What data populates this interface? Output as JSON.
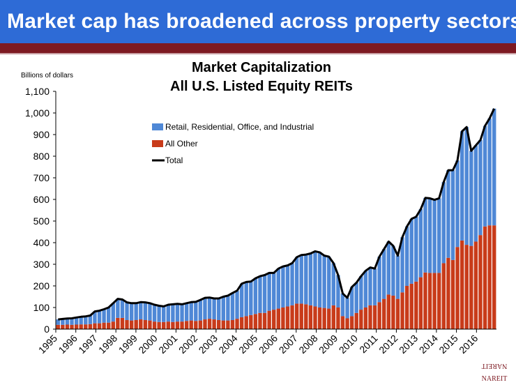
{
  "slide": {
    "title": "Market cap has broadened across property sectors",
    "colors": {
      "banner": "#2e6bd6",
      "strip": "#7d1a22"
    }
  },
  "logo": {
    "text": "NAREIT",
    "color": "#7d1a22"
  },
  "chart_data": {
    "type": "bar",
    "stacked": true,
    "title_line1": "Market Capitalization",
    "title_line2": "All U.S. Listed Equity REITs",
    "ylabel": "Billions of dollars",
    "ylim": [
      0,
      1100
    ],
    "yticks": [
      0,
      100,
      200,
      300,
      400,
      500,
      600,
      700,
      800,
      900,
      1000,
      1100
    ],
    "ytick_labels": [
      "0",
      "100",
      "200",
      "300",
      "400",
      "500",
      "600",
      "700",
      "800",
      "900",
      "1,000",
      "1,100"
    ],
    "x_start_year": 1995,
    "x_tick_labels": [
      "1995",
      "1996",
      "1997",
      "1998",
      "1999",
      "2000",
      "2001",
      "2002",
      "2003",
      "2004",
      "2005",
      "2006",
      "2007",
      "2008",
      "2009",
      "2010",
      "2011",
      "2012",
      "2013",
      "2014",
      "2015",
      "2016"
    ],
    "grid": false,
    "legend_position": "top-left",
    "series": [
      {
        "name": "Retail, Residential, Office, and Industrial",
        "color": "#4f88d6",
        "values": [
          25,
          27,
          28,
          30,
          33,
          35,
          37,
          40,
          55,
          58,
          62,
          70,
          85,
          88,
          85,
          82,
          80,
          78,
          80,
          82,
          80,
          78,
          75,
          72,
          78,
          82,
          82,
          80,
          82,
          85,
          88,
          95,
          100,
          98,
          97,
          100,
          110,
          115,
          125,
          130,
          155,
          158,
          155,
          165,
          170,
          175,
          175,
          170,
          185,
          190,
          190,
          195,
          215,
          225,
          230,
          240,
          255,
          255,
          242,
          240,
          195,
          150,
          105,
          95,
          135,
          140,
          155,
          170,
          175,
          170,
          210,
          230,
          245,
          230,
          200,
          255,
          275,
          300,
          300,
          315,
          345,
          345,
          338,
          345,
          375,
          405,
          415,
          400,
          505,
          545,
          440,
          445,
          440,
          465,
          495,
          540
        ],
        "stacks_below": true
      },
      {
        "name": "All Other",
        "color": "#c83b1a",
        "values": [
          20,
          20,
          21,
          20,
          21,
          22,
          22,
          23,
          27,
          27,
          30,
          30,
          35,
          52,
          52,
          42,
          40,
          42,
          45,
          42,
          40,
          35,
          33,
          33,
          35,
          33,
          35,
          35,
          38,
          40,
          38,
          40,
          45,
          48,
          45,
          42,
          40,
          40,
          42,
          48,
          55,
          60,
          65,
          70,
          75,
          75,
          85,
          90,
          95,
          100,
          105,
          110,
          118,
          118,
          115,
          110,
          105,
          100,
          98,
          95,
          110,
          100,
          60,
          50,
          60,
          75,
          90,
          100,
          110,
          110,
          125,
          140,
          160,
          155,
          140,
          170,
          200,
          210,
          220,
          240,
          262,
          260,
          260,
          260,
          305,
          330,
          320,
          380,
          410,
          390,
          385,
          405,
          435,
          475,
          480,
          480
        ]
      }
    ],
    "total": {
      "name": "Total",
      "color": "#000000",
      "values": [
        45,
        47,
        49,
        50,
        54,
        57,
        59,
        63,
        82,
        85,
        92,
        100,
        120,
        140,
        137,
        124,
        120,
        120,
        125,
        124,
        120,
        113,
        108,
        105,
        113,
        115,
        117,
        115,
        120,
        125,
        126,
        135,
        145,
        146,
        142,
        142,
        150,
        155,
        167,
        178,
        210,
        218,
        220,
        235,
        245,
        250,
        260,
        260,
        280,
        290,
        295,
        305,
        333,
        343,
        345,
        350,
        360,
        355,
        340,
        335,
        305,
        250,
        165,
        145,
        195,
        215,
        245,
        270,
        285,
        280,
        335,
        370,
        405,
        385,
        340,
        425,
        475,
        510,
        520,
        555,
        607,
        605,
        598,
        605,
        680,
        735,
        735,
        780,
        915,
        935,
        825,
        850,
        875,
        940,
        975,
        1020
      ]
    }
  }
}
